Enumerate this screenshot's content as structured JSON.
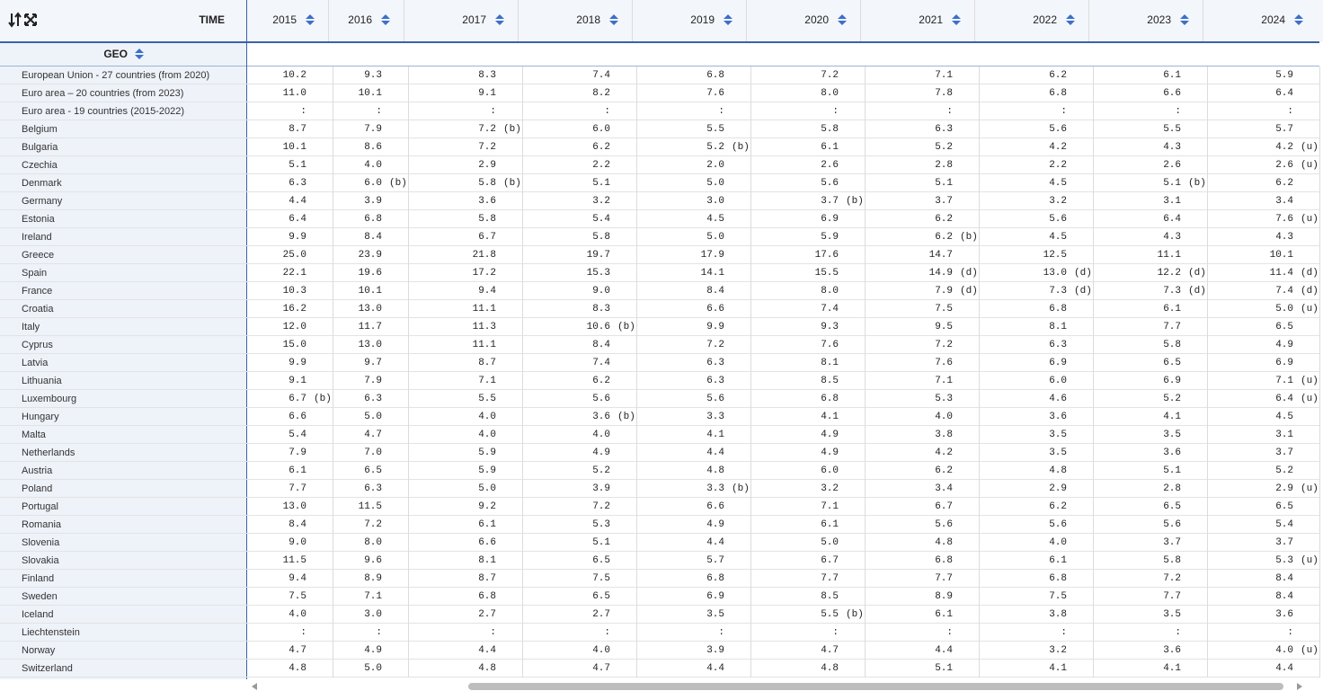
{
  "header": {
    "time_label": "TIME",
    "geo_label": "GEO",
    "years": [
      "2015",
      "2016",
      "2017",
      "2018",
      "2019",
      "2020",
      "2021",
      "2022",
      "2023",
      "2024"
    ]
  },
  "rows": [
    {
      "geo": "European Union - 27 countries (from 2020)",
      "cells": [
        "10.2",
        "9.3",
        "8.3",
        "7.4",
        "6.8",
        "7.2",
        "7.1",
        "6.2",
        "6.1",
        "5.9"
      ]
    },
    {
      "geo": "Euro area – 20 countries (from 2023)",
      "cells": [
        "11.0",
        "10.1",
        "9.1",
        "8.2",
        "7.6",
        "8.0",
        "7.8",
        "6.8",
        "6.6",
        "6.4"
      ]
    },
    {
      "geo": "Euro area - 19 countries (2015-2022)",
      "cells": [
        ":",
        ":",
        ":",
        ":",
        ":",
        ":",
        ":",
        ":",
        ":",
        ":"
      ]
    },
    {
      "geo": "Belgium",
      "cells": [
        "8.7",
        "7.9",
        [
          "7.2",
          "(b)"
        ],
        "6.0",
        "5.5",
        "5.8",
        "6.3",
        "5.6",
        "5.5",
        "5.7"
      ]
    },
    {
      "geo": "Bulgaria",
      "cells": [
        "10.1",
        "8.6",
        "7.2",
        "6.2",
        [
          "5.2",
          "(b)"
        ],
        "6.1",
        "5.2",
        "4.2",
        "4.3",
        [
          "4.2",
          "(u)"
        ]
      ]
    },
    {
      "geo": "Czechia",
      "cells": [
        "5.1",
        "4.0",
        "2.9",
        "2.2",
        "2.0",
        "2.6",
        "2.8",
        "2.2",
        "2.6",
        [
          "2.6",
          "(u)"
        ]
      ]
    },
    {
      "geo": "Denmark",
      "cells": [
        "6.3",
        [
          "6.0",
          "(b)"
        ],
        [
          "5.8",
          "(b)"
        ],
        "5.1",
        "5.0",
        "5.6",
        "5.1",
        "4.5",
        [
          "5.1",
          "(b)"
        ],
        "6.2"
      ]
    },
    {
      "geo": "Germany",
      "cells": [
        "4.4",
        "3.9",
        "3.6",
        "3.2",
        "3.0",
        [
          "3.7",
          "(b)"
        ],
        "3.7",
        "3.2",
        "3.1",
        "3.4"
      ]
    },
    {
      "geo": "Estonia",
      "cells": [
        "6.4",
        "6.8",
        "5.8",
        "5.4",
        "4.5",
        "6.9",
        "6.2",
        "5.6",
        "6.4",
        [
          "7.6",
          "(u)"
        ]
      ]
    },
    {
      "geo": "Ireland",
      "cells": [
        "9.9",
        "8.4",
        "6.7",
        "5.8",
        "5.0",
        "5.9",
        [
          "6.2",
          "(b)"
        ],
        "4.5",
        "4.3",
        "4.3"
      ]
    },
    {
      "geo": "Greece",
      "cells": [
        "25.0",
        "23.9",
        "21.8",
        "19.7",
        "17.9",
        "17.6",
        "14.7",
        "12.5",
        "11.1",
        "10.1"
      ]
    },
    {
      "geo": "Spain",
      "cells": [
        "22.1",
        "19.6",
        "17.2",
        "15.3",
        "14.1",
        "15.5",
        [
          "14.9",
          "(d)"
        ],
        [
          "13.0",
          "(d)"
        ],
        [
          "12.2",
          "(d)"
        ],
        [
          "11.4",
          "(d)"
        ]
      ]
    },
    {
      "geo": "France",
      "cells": [
        "10.3",
        "10.1",
        "9.4",
        "9.0",
        "8.4",
        "8.0",
        [
          "7.9",
          "(d)"
        ],
        [
          "7.3",
          "(d)"
        ],
        [
          "7.3",
          "(d)"
        ],
        [
          "7.4",
          "(d)"
        ]
      ]
    },
    {
      "geo": "Croatia",
      "cells": [
        "16.2",
        "13.0",
        "11.1",
        "8.3",
        "6.6",
        "7.4",
        "7.5",
        "6.8",
        "6.1",
        [
          "5.0",
          "(u)"
        ]
      ]
    },
    {
      "geo": "Italy",
      "cells": [
        "12.0",
        "11.7",
        "11.3",
        [
          "10.6",
          "(b)"
        ],
        "9.9",
        "9.3",
        "9.5",
        "8.1",
        "7.7",
        "6.5"
      ]
    },
    {
      "geo": "Cyprus",
      "cells": [
        "15.0",
        "13.0",
        "11.1",
        "8.4",
        "7.2",
        "7.6",
        "7.2",
        "6.3",
        "5.8",
        "4.9"
      ]
    },
    {
      "geo": "Latvia",
      "cells": [
        "9.9",
        "9.7",
        "8.7",
        "7.4",
        "6.3",
        "8.1",
        "7.6",
        "6.9",
        "6.5",
        "6.9"
      ]
    },
    {
      "geo": "Lithuania",
      "cells": [
        "9.1",
        "7.9",
        "7.1",
        "6.2",
        "6.3",
        "8.5",
        "7.1",
        "6.0",
        "6.9",
        [
          "7.1",
          "(u)"
        ]
      ]
    },
    {
      "geo": "Luxembourg",
      "cells": [
        [
          "6.7",
          "(b)"
        ],
        "6.3",
        "5.5",
        "5.6",
        "5.6",
        "6.8",
        "5.3",
        "4.6",
        "5.2",
        [
          "6.4",
          "(u)"
        ]
      ]
    },
    {
      "geo": "Hungary",
      "cells": [
        "6.6",
        "5.0",
        "4.0",
        [
          "3.6",
          "(b)"
        ],
        "3.3",
        "4.1",
        "4.0",
        "3.6",
        "4.1",
        "4.5"
      ]
    },
    {
      "geo": "Malta",
      "cells": [
        "5.4",
        "4.7",
        "4.0",
        "4.0",
        "4.1",
        "4.9",
        "3.8",
        "3.5",
        "3.5",
        "3.1"
      ]
    },
    {
      "geo": "Netherlands",
      "cells": [
        "7.9",
        "7.0",
        "5.9",
        "4.9",
        "4.4",
        "4.9",
        "4.2",
        "3.5",
        "3.6",
        "3.7"
      ]
    },
    {
      "geo": "Austria",
      "cells": [
        "6.1",
        "6.5",
        "5.9",
        "5.2",
        "4.8",
        "6.0",
        "6.2",
        "4.8",
        "5.1",
        "5.2"
      ]
    },
    {
      "geo": "Poland",
      "cells": [
        "7.7",
        "6.3",
        "5.0",
        "3.9",
        [
          "3.3",
          "(b)"
        ],
        "3.2",
        "3.4",
        "2.9",
        "2.8",
        [
          "2.9",
          "(u)"
        ]
      ]
    },
    {
      "geo": "Portugal",
      "cells": [
        "13.0",
        "11.5",
        "9.2",
        "7.2",
        "6.6",
        "7.1",
        "6.7",
        "6.2",
        "6.5",
        "6.5"
      ]
    },
    {
      "geo": "Romania",
      "cells": [
        "8.4",
        "7.2",
        "6.1",
        "5.3",
        "4.9",
        "6.1",
        "5.6",
        "5.6",
        "5.6",
        "5.4"
      ]
    },
    {
      "geo": "Slovenia",
      "cells": [
        "9.0",
        "8.0",
        "6.6",
        "5.1",
        "4.4",
        "5.0",
        "4.8",
        "4.0",
        "3.7",
        "3.7"
      ]
    },
    {
      "geo": "Slovakia",
      "cells": [
        "11.5",
        "9.6",
        "8.1",
        "6.5",
        "5.7",
        "6.7",
        "6.8",
        "6.1",
        "5.8",
        [
          "5.3",
          "(u)"
        ]
      ]
    },
    {
      "geo": "Finland",
      "cells": [
        "9.4",
        "8.9",
        "8.7",
        "7.5",
        "6.8",
        "7.7",
        "7.7",
        "6.8",
        "7.2",
        "8.4"
      ]
    },
    {
      "geo": "Sweden",
      "cells": [
        "7.5",
        "7.1",
        "6.8",
        "6.5",
        "6.9",
        "8.5",
        "8.9",
        "7.5",
        "7.7",
        "8.4"
      ]
    },
    {
      "geo": "Iceland",
      "cells": [
        "4.0",
        "3.0",
        "2.7",
        "2.7",
        "3.5",
        [
          "5.5",
          "(b)"
        ],
        "6.1",
        "3.8",
        "3.5",
        "3.6"
      ]
    },
    {
      "geo": "Liechtenstein",
      "cells": [
        ":",
        ":",
        ":",
        ":",
        ":",
        ":",
        ":",
        ":",
        ":",
        ":"
      ]
    },
    {
      "geo": "Norway",
      "cells": [
        "4.7",
        "4.9",
        "4.4",
        "4.0",
        "3.9",
        "4.7",
        "4.4",
        "3.2",
        "3.6",
        [
          "4.0",
          "(u)"
        ]
      ]
    },
    {
      "geo": "Switzerland",
      "cells": [
        "4.8",
        "5.0",
        "4.8",
        "4.7",
        "4.4",
        "4.8",
        "5.1",
        "4.1",
        "4.1",
        "4.4"
      ]
    }
  ]
}
